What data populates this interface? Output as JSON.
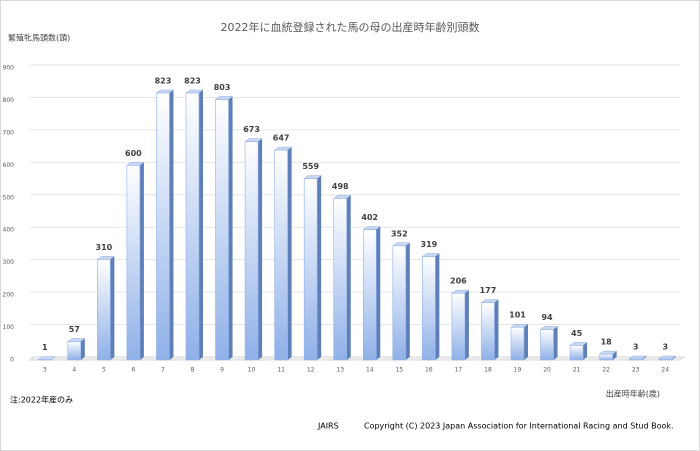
{
  "chart_data": {
    "type": "bar",
    "title": "2022年に血統登録された馬の母の出産時年齢別頭数",
    "y_label": "繁殖牝馬頭数(頭)",
    "x_label": "出産時年齢(歳)",
    "note": "注:2022年産のみ",
    "copyright": "Copyright (C) 2023 Japan Association for International Racing and Stud Book.",
    "logo": "JAIRS",
    "categories": [
      "3",
      "4",
      "5",
      "6",
      "7",
      "8",
      "9",
      "10",
      "11",
      "12",
      "13",
      "14",
      "15",
      "16",
      "17",
      "18",
      "19",
      "20",
      "21",
      "22",
      "23",
      "24"
    ],
    "values": [
      1,
      57,
      310,
      600,
      823,
      823,
      803,
      673,
      647,
      559,
      498,
      402,
      352,
      319,
      206,
      177,
      101,
      94,
      45,
      18,
      3,
      3
    ],
    "color": "#8fb0e8",
    "ylim": [
      0,
      900
    ],
    "yticks": [
      0,
      100,
      200,
      300,
      400,
      500,
      600,
      700,
      800,
      900
    ],
    "grid": true
  }
}
